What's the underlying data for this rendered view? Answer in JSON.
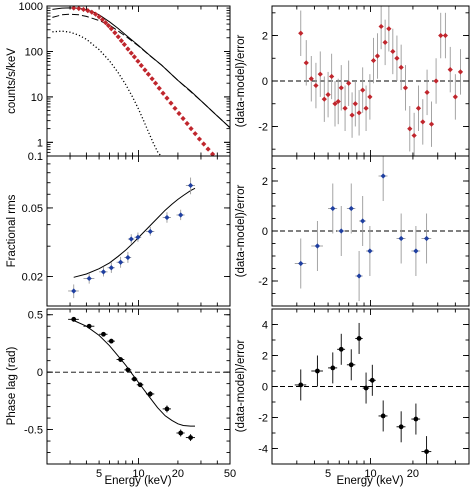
{
  "colors": {
    "red_markers": "#c0262d",
    "blue_markers": "#1f3fa0",
    "error_bars": "#9a9a9a",
    "model": "#000000"
  },
  "chart_data": [
    {
      "id": "spectrum",
      "type": "line",
      "xscale": "log",
      "yscale": "log",
      "xlim": [
        2,
        50
      ],
      "ylim": [
        0.5,
        1000
      ],
      "ylabel": "counts/s/keV",
      "yticks": [
        1,
        10,
        100,
        1000
      ],
      "yticklabels": [
        "1",
        "10",
        "100",
        "1000"
      ],
      "grid": false,
      "points": {
        "x": [
          3.2,
          3.5,
          3.8,
          4.1,
          4.4,
          4.7,
          5.0,
          5.3,
          5.6,
          5.9,
          6.2,
          6.6,
          7.0,
          7.4,
          7.8,
          8.3,
          8.8,
          9.3,
          9.9,
          10.5,
          11.2,
          11.9,
          12.7,
          13.5,
          14.4,
          15.4,
          16.5,
          17.7,
          19.0,
          20.4,
          21.9,
          23.5,
          25.2,
          27.1,
          29.2,
          31.5,
          34.0,
          36.8,
          40.0,
          43.5
        ],
        "y": [
          900,
          880,
          840,
          790,
          730,
          660,
          580,
          500,
          430,
          370,
          315,
          258,
          210,
          172,
          142,
          113,
          92,
          76,
          61,
          49,
          39,
          31.5,
          25,
          20,
          15.5,
          12,
          9.4,
          7.3,
          5.6,
          4.3,
          3.35,
          2.6,
          2.0,
          1.55,
          1.18,
          0.92,
          0.71,
          0.55,
          0.43,
          0.33
        ]
      },
      "curves": [
        {
          "style": "solid",
          "x": [
            2.2,
            2.6,
            3.0,
            3.5,
            4.0,
            4.5,
            5.0,
            6,
            7,
            8,
            10,
            12,
            15,
            20,
            25,
            30,
            40,
            50
          ],
          "y": [
            840,
            900,
            910,
            890,
            830,
            740,
            640,
            450,
            320,
            230,
            135,
            85,
            50,
            23,
            13.5,
            8.2,
            3.8,
            2.1
          ]
        },
        {
          "style": "dashed",
          "x": [
            2.2,
            2.6,
            3.0,
            3.5,
            4.0,
            5.0,
            6,
            8,
            10,
            12,
            15,
            20,
            30,
            50
          ],
          "y": [
            560,
            640,
            660,
            640,
            590,
            480,
            380,
            215,
            132,
            84,
            50,
            23,
            8.2,
            2.1
          ]
        },
        {
          "style": "dotted",
          "x": [
            2.2,
            2.6,
            3.0,
            3.5,
            4.0,
            5.0,
            6.0,
            7.0,
            8.0,
            9.0,
            10,
            11,
            12,
            13,
            14,
            15,
            16
          ],
          "y": [
            270,
            280,
            265,
            228,
            185,
            110,
            62,
            34,
            18.5,
            10,
            5.4,
            2.9,
            1.6,
            0.95,
            0.62,
            0.48,
            0.4
          ]
        }
      ]
    },
    {
      "id": "spectrum_residuals",
      "type": "scatter",
      "xscale": "log",
      "xlim": [
        2,
        50
      ],
      "ylim": [
        -3.3,
        3.3
      ],
      "ylabel": "(data-model)/error",
      "yticks": [
        -2,
        0,
        2
      ],
      "x": [
        3.2,
        3.5,
        3.8,
        4.1,
        4.4,
        4.7,
        5.0,
        5.3,
        5.6,
        5.9,
        6.2,
        6.6,
        7.0,
        7.4,
        7.8,
        8.3,
        8.8,
        9.3,
        9.9,
        10.5,
        11.2,
        11.9,
        12.7,
        13.5,
        14.4,
        15.4,
        16.5,
        17.7,
        19.0,
        20.4,
        21.9,
        23.5,
        25.2,
        27.1,
        29.2,
        31.5,
        34.0,
        36.8,
        40.0,
        43.5
      ],
      "y": [
        2.1,
        0.8,
        0.1,
        -0.2,
        0.3,
        -0.8,
        -0.6,
        0.2,
        -1.0,
        -0.9,
        -0.3,
        -1.2,
        -0.1,
        -1.5,
        -1.0,
        -1.4,
        -0.4,
        -1.2,
        -0.7,
        0.9,
        1.1,
        2.4,
        1.7,
        2.3,
        1.3,
        1.0,
        0.6,
        -0.3,
        -2.1,
        -2.4,
        -1.2,
        -1.8,
        -0.5,
        -1.9,
        0.0,
        2.0,
        2.0,
        0.5,
        -0.7,
        0.4
      ],
      "err": [
        1.0,
        1.0,
        1.0,
        1.0,
        1.0,
        1.0,
        1.0,
        1.0,
        1.0,
        1.0,
        1.0,
        1.0,
        1.0,
        1.0,
        1.0,
        1.0,
        1.0,
        1.0,
        1.0,
        1.0,
        1.0,
        1.0,
        1.0,
        1.0,
        1.0,
        1.0,
        1.0,
        1.0,
        1.0,
        1.0,
        1.0,
        1.0,
        1.0,
        1.0,
        1.0,
        1.0,
        1.0,
        1.0,
        1.0,
        1.0
      ]
    },
    {
      "id": "fractional_rms",
      "type": "scatter",
      "xscale": "log",
      "yscale": "log",
      "xlim": [
        2,
        50
      ],
      "ylim": [
        0.0135,
        0.1
      ],
      "ylabel": "Fractional rms",
      "yticks": [
        0.02,
        0.05,
        0.1
      ],
      "yticklabels": [
        "0.02",
        "0.05",
        "0.1"
      ],
      "x": [
        3.2,
        4.2,
        5.4,
        6.2,
        7.3,
        8.3,
        8.8,
        9.9,
        12.3,
        16.5,
        21.0,
        25.0
      ],
      "y": [
        0.0165,
        0.0195,
        0.0213,
        0.0225,
        0.0242,
        0.0258,
        0.033,
        0.0338,
        0.0365,
        0.044,
        0.0455,
        0.0675
      ],
      "ylo": [
        0.015,
        0.0182,
        0.02,
        0.021,
        0.0225,
        0.024,
        0.031,
        0.0318,
        0.0345,
        0.041,
        0.0425,
        0.06
      ],
      "yhi": [
        0.018,
        0.021,
        0.0228,
        0.0242,
        0.026,
        0.0278,
        0.0352,
        0.036,
        0.0388,
        0.0472,
        0.0488,
        0.075
      ],
      "xerr": [
        0.3,
        0.4,
        0.4,
        0.4,
        0.5,
        0.5,
        0.5,
        0.6,
        0.9,
        1.2,
        1.5,
        2.0
      ],
      "model": {
        "x": [
          3.2,
          4.0,
          5.0,
          6.0,
          7.0,
          8.0,
          9.0,
          10.0,
          12.0,
          14.0,
          16.0,
          18.0,
          20.0,
          22.0,
          25.0,
          27.0
        ],
        "y": [
          0.0198,
          0.0207,
          0.0222,
          0.024,
          0.0262,
          0.0285,
          0.031,
          0.0337,
          0.0388,
          0.0437,
          0.0485,
          0.0525,
          0.056,
          0.059,
          0.063,
          0.065
        ]
      }
    },
    {
      "id": "rms_residuals",
      "type": "scatter",
      "xscale": "log",
      "xlim": [
        2,
        50
      ],
      "ylim": [
        -3.0,
        3.0
      ],
      "ylabel": "(data-model)/error",
      "yticks": [
        -2,
        0,
        2
      ],
      "x": [
        3.2,
        4.2,
        5.4,
        6.2,
        7.3,
        8.3,
        8.8,
        9.9,
        12.3,
        16.5,
        21.0,
        25.0
      ],
      "y": [
        -1.3,
        -0.6,
        0.9,
        0.0,
        0.9,
        -1.8,
        0.4,
        -0.8,
        2.2,
        -0.3,
        -0.8,
        -0.3
      ],
      "err": [
        1.0,
        1.0,
        1.0,
        1.0,
        1.0,
        1.0,
        1.0,
        1.0,
        1.0,
        1.0,
        1.0,
        1.0
      ],
      "xerr": [
        0.3,
        0.4,
        0.4,
        0.4,
        0.5,
        0.5,
        0.5,
        0.6,
        0.9,
        1.2,
        1.5,
        2.0
      ]
    },
    {
      "id": "phase_lag",
      "type": "scatter",
      "xscale": "log",
      "xlim": [
        2,
        50
      ],
      "ylim": [
        -0.8,
        0.55
      ],
      "ylabel": "Phase lag (rad)",
      "yticks": [
        -0.5,
        0,
        0.5
      ],
      "yticklabels": [
        "-0.5",
        "0",
        "0.5"
      ],
      "xlabel": "Energy (keV)",
      "xticks": [
        5,
        10,
        20,
        50
      ],
      "xticklabels": [
        "5",
        "10",
        "20",
        "50"
      ],
      "x": [
        3.2,
        4.2,
        5.4,
        6.2,
        7.3,
        8.3,
        9.3,
        10.3,
        12.3,
        16.5,
        21.0,
        25.0
      ],
      "y": [
        0.46,
        0.4,
        0.33,
        0.27,
        0.11,
        0.02,
        -0.06,
        -0.11,
        -0.19,
        -0.32,
        -0.53,
        -0.57
      ],
      "err": [
        0.02,
        0.02,
        0.02,
        0.02,
        0.02,
        0.02,
        0.02,
        0.02,
        0.025,
        0.03,
        0.03,
        0.03
      ],
      "xerr": [
        0.3,
        0.4,
        0.4,
        0.4,
        0.5,
        0.5,
        0.5,
        0.6,
        0.9,
        1.2,
        1.5,
        2.0
      ],
      "model": {
        "x": [
          3.2,
          4.0,
          5.0,
          6.0,
          7.0,
          8.0,
          9.0,
          10.0,
          12.0,
          14.0,
          16.0,
          18.0,
          20.0,
          22.0,
          25.0,
          27.0
        ],
        "y": [
          0.45,
          0.4,
          0.32,
          0.23,
          0.14,
          0.06,
          -0.02,
          -0.09,
          -0.21,
          -0.31,
          -0.38,
          -0.42,
          -0.45,
          -0.465,
          -0.47,
          -0.47
        ]
      }
    },
    {
      "id": "lag_residuals",
      "type": "scatter",
      "xscale": "log",
      "xlim": [
        2,
        50
      ],
      "ylim": [
        -5,
        5
      ],
      "ylabel": "(data-model)/error",
      "yticks": [
        -4,
        -2,
        0,
        2,
        4
      ],
      "yticklabels": [
        "-4",
        "-2",
        "0",
        "2",
        "4"
      ],
      "xlabel": "Energy (keV)",
      "xticks": [
        5,
        10,
        20
      ],
      "xticklabels": [
        "5",
        "10",
        "20"
      ],
      "x": [
        3.2,
        4.2,
        5.4,
        6.2,
        7.3,
        8.3,
        9.3,
        10.3,
        12.3,
        16.5,
        21.0,
        25.0
      ],
      "y": [
        0.1,
        1.0,
        1.2,
        2.4,
        1.4,
        3.1,
        -0.1,
        0.4,
        -1.9,
        -2.6,
        -2.1,
        -4.2
      ],
      "err": [
        1.0,
        1.0,
        1.0,
        1.0,
        1.0,
        1.0,
        1.0,
        1.0,
        1.0,
        1.0,
        1.0,
        1.0
      ],
      "xerr": [
        0.3,
        0.4,
        0.4,
        0.4,
        0.5,
        0.5,
        0.5,
        0.6,
        0.9,
        1.2,
        1.5,
        2.0
      ]
    }
  ]
}
